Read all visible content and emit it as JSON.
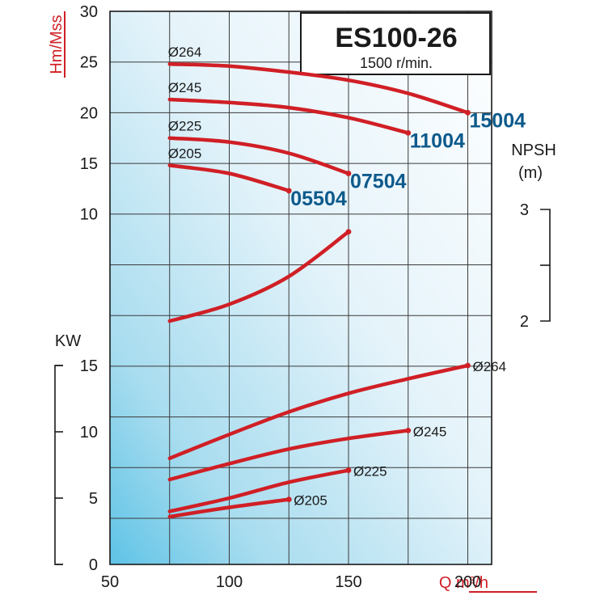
{
  "chart_data": {
    "type": "line",
    "title": "ES100-26",
    "subtitle": "1500 r/min.",
    "xlabel": "Q m³/h",
    "x_range": [
      50,
      210
    ],
    "x_ticks": [
      "50",
      "100",
      "150",
      "200"
    ],
    "head_axis": {
      "label": "Hm/Mss",
      "range": [
        0,
        30
      ],
      "ticks": [
        "10",
        "15",
        "20",
        "25",
        "30"
      ]
    },
    "npsh_axis": {
      "label_line1": "NPSH",
      "label_line2": "(m)",
      "range": [
        2,
        3
      ],
      "ticks": [
        "2",
        "3"
      ]
    },
    "power_axis": {
      "label": "KW",
      "range": [
        0,
        15
      ],
      "ticks": [
        "0",
        "5",
        "10",
        "15"
      ]
    },
    "grid": true,
    "colors": {
      "curve": "#d01f25",
      "model_label": "#0d5a8c",
      "axis_title": "#d01f25",
      "bg_light": "#ffffff",
      "bg_dark": "#5ec3e6"
    },
    "head_curves": [
      {
        "diameter": "Ø264",
        "model": "15004",
        "points": [
          [
            75,
            24.8
          ],
          [
            100,
            24.6
          ],
          [
            125,
            24.0
          ],
          [
            150,
            23.2
          ],
          [
            175,
            21.9
          ],
          [
            200,
            20.0
          ]
        ]
      },
      {
        "diameter": "Ø245",
        "model": "11004",
        "points": [
          [
            75,
            21.3
          ],
          [
            100,
            21.0
          ],
          [
            125,
            20.5
          ],
          [
            150,
            19.5
          ],
          [
            175,
            18.0
          ]
        ]
      },
      {
        "diameter": "Ø225",
        "model": "07504",
        "points": [
          [
            75,
            17.5
          ],
          [
            100,
            17.1
          ],
          [
            125,
            16.0
          ],
          [
            150,
            14.0
          ]
        ]
      },
      {
        "diameter": "Ø205",
        "model": "05504",
        "points": [
          [
            75,
            14.8
          ],
          [
            100,
            14.0
          ],
          [
            125,
            12.3
          ]
        ]
      }
    ],
    "npsh_curve": {
      "points": [
        [
          75,
          2.0
        ],
        [
          100,
          2.15
        ],
        [
          125,
          2.4
        ],
        [
          150,
          2.8
        ]
      ]
    },
    "power_curves": [
      {
        "diameter": "Ø264",
        "points": [
          [
            75,
            8.0
          ],
          [
            100,
            9.8
          ],
          [
            125,
            11.5
          ],
          [
            150,
            12.9
          ],
          [
            175,
            14.0
          ],
          [
            200,
            15.0
          ]
        ]
      },
      {
        "diameter": "Ø245",
        "points": [
          [
            75,
            6.4
          ],
          [
            100,
            7.6
          ],
          [
            125,
            8.7
          ],
          [
            150,
            9.5
          ],
          [
            175,
            10.1
          ]
        ]
      },
      {
        "diameter": "Ø225",
        "points": [
          [
            75,
            4.0
          ],
          [
            100,
            5.0
          ],
          [
            125,
            6.2
          ],
          [
            150,
            7.1
          ]
        ]
      },
      {
        "diameter": "Ø205",
        "points": [
          [
            75,
            3.6
          ],
          [
            100,
            4.3
          ],
          [
            125,
            4.9
          ]
        ]
      }
    ]
  }
}
